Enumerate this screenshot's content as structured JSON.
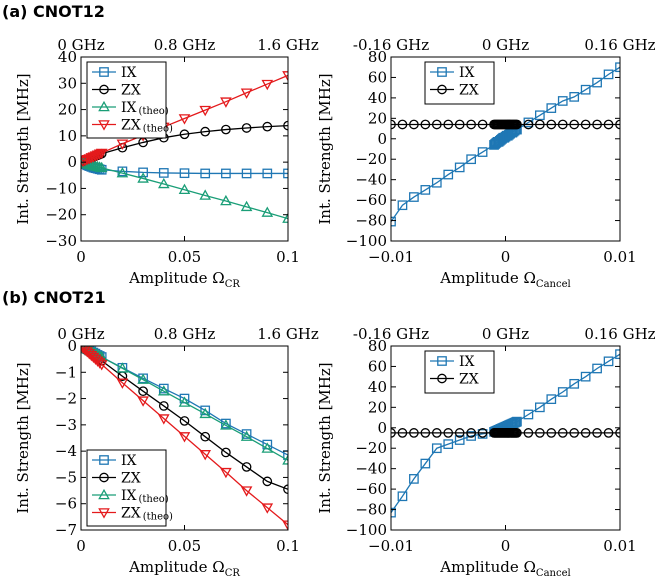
{
  "panels": [
    {
      "tag": "(a)",
      "name": "CNOT12"
    },
    {
      "tag": "(b)",
      "name": "CNOT21"
    }
  ],
  "colors": {
    "IX": "#1f77b4",
    "ZX": "#000000",
    "IX_theo": "#1a9e77",
    "ZX_theo": "#e41a1c"
  },
  "chart_data": [
    {
      "type": "line",
      "panel": "(a) CNOT12",
      "xlabel": "Amplitude Ω",
      "xlabel_sub": "CR",
      "ylabel": "Int. Strength [MHz]",
      "xlim": [
        0,
        0.1
      ],
      "ylim": [
        -30,
        40
      ],
      "xticks": [
        0,
        0.05,
        0.1
      ],
      "xtick_labels": [
        "0",
        "0.05",
        "0.1"
      ],
      "yticks": [
        -30,
        -20,
        -10,
        0,
        10,
        20,
        30,
        40
      ],
      "ytick_labels": [
        "−30",
        "−20",
        "−10",
        "0",
        "10",
        "20",
        "30",
        "40"
      ],
      "top_ticks": [
        0,
        0.05,
        0.1
      ],
      "top_tick_labels": [
        "0 GHz",
        "0.8 GHz",
        "1.6 GHz"
      ],
      "legend_position": "top-left",
      "series": [
        {
          "name": "IX",
          "marker": "square",
          "color": "#1f77b4",
          "x": [
            0.001,
            0.002,
            0.003,
            0.004,
            0.005,
            0.006,
            0.007,
            0.008,
            0.009,
            0.01,
            0.02,
            0.03,
            0.04,
            0.05,
            0.06,
            0.07,
            0.08,
            0.09,
            0.1
          ],
          "y": [
            -0.4,
            -0.8,
            -1.2,
            -1.5,
            -1.8,
            -2.1,
            -2.3,
            -2.5,
            -2.7,
            -2.9,
            -3.5,
            -3.9,
            -4.1,
            -4.2,
            -4.3,
            -4.3,
            -4.3,
            -4.3,
            -4.3
          ]
        },
        {
          "name": "ZX",
          "marker": "circle",
          "color": "#000000",
          "x": [
            0.001,
            0.002,
            0.003,
            0.004,
            0.005,
            0.006,
            0.007,
            0.008,
            0.009,
            0.01,
            0.02,
            0.03,
            0.04,
            0.05,
            0.06,
            0.07,
            0.08,
            0.09,
            0.1
          ],
          "y": [
            0.3,
            0.6,
            1.0,
            1.3,
            1.6,
            2.0,
            2.3,
            2.6,
            2.9,
            3.2,
            5.5,
            7.5,
            9.3,
            10.6,
            11.6,
            12.4,
            13.0,
            13.5,
            13.9
          ]
        },
        {
          "name": "IX",
          "name_sub": "(theo)",
          "marker": "triangle-up",
          "color": "#1a9e77",
          "x": [
            0.001,
            0.002,
            0.003,
            0.004,
            0.005,
            0.006,
            0.007,
            0.008,
            0.009,
            0.01,
            0.02,
            0.03,
            0.04,
            0.05,
            0.06,
            0.07,
            0.08,
            0.09,
            0.1
          ],
          "y": [
            -0.3,
            -0.5,
            -0.8,
            -1.0,
            -1.2,
            -1.4,
            -1.6,
            -1.8,
            -2.0,
            -2.2,
            -4.2,
            -6.2,
            -8.3,
            -10.5,
            -12.7,
            -14.8,
            -17.0,
            -19.2,
            -21.5
          ]
        },
        {
          "name": "ZX",
          "name_sub": "(theo)",
          "marker": "triangle-down",
          "color": "#e41a1c",
          "x": [
            0.001,
            0.002,
            0.003,
            0.004,
            0.005,
            0.006,
            0.007,
            0.008,
            0.009,
            0.01,
            0.02,
            0.03,
            0.04,
            0.05,
            0.06,
            0.07,
            0.08,
            0.09,
            0.1
          ],
          "y": [
            0.4,
            0.7,
            1.1,
            1.4,
            1.8,
            2.1,
            2.5,
            2.8,
            3.2,
            3.5,
            7.0,
            10.2,
            13.4,
            16.6,
            19.8,
            23.0,
            26.4,
            29.7,
            33.0
          ]
        }
      ]
    },
    {
      "type": "line",
      "panel": "(a) CNOT12",
      "xlabel": "Amplitude Ω",
      "xlabel_sub": "Cancel",
      "ylabel": "Int. Strength [MHz]",
      "xlim": [
        -0.01,
        0.01
      ],
      "ylim": [
        -100,
        80
      ],
      "xticks": [
        -0.01,
        0,
        0.01
      ],
      "xtick_labels": [
        "−0.01",
        "0",
        "0.01"
      ],
      "yticks": [
        -100,
        -80,
        -60,
        -40,
        -20,
        0,
        20,
        40,
        60,
        80
      ],
      "ytick_labels": [
        "−100",
        "−80",
        "−60",
        "−40",
        "−20",
        "0",
        "20",
        "40",
        "60",
        "80"
      ],
      "top_ticks": [
        -0.01,
        0,
        0.01
      ],
      "top_tick_labels": [
        "-0.16 GHz",
        "0 GHz",
        "0.16 GHz"
      ],
      "legend_position": "top-left",
      "series": [
        {
          "name": "IX",
          "marker": "square",
          "color": "#1f77b4",
          "x": [
            -0.01,
            -0.009,
            -0.008,
            -0.007,
            -0.006,
            -0.005,
            -0.004,
            -0.003,
            -0.002,
            -0.001,
            -0.0009,
            -0.0008,
            -0.0007,
            -0.0006,
            -0.0005,
            -0.0004,
            -0.0003,
            -0.0002,
            -0.0001,
            0,
            0.0001,
            0.0002,
            0.0003,
            0.0004,
            0.0005,
            0.0006,
            0.0007,
            0.0008,
            0.0009,
            0.001,
            0.002,
            0.003,
            0.004,
            0.005,
            0.006,
            0.007,
            0.008,
            0.009,
            0.01
          ],
          "y": [
            -81,
            -65,
            -57,
            -50,
            -43,
            -35,
            -28,
            -20,
            -13,
            -6,
            -5,
            -4,
            -3,
            -3,
            -2,
            -1,
            0,
            1,
            1,
            2,
            3,
            3,
            4,
            5,
            6,
            6,
            7,
            8,
            9,
            9,
            16,
            23,
            30,
            37,
            41,
            48,
            55,
            63,
            70
          ]
        },
        {
          "name": "ZX",
          "marker": "circle",
          "color": "#000000",
          "x": [
            -0.01,
            -0.009,
            -0.008,
            -0.007,
            -0.006,
            -0.005,
            -0.004,
            -0.003,
            -0.002,
            -0.001,
            -0.0009,
            -0.0008,
            -0.0007,
            -0.0006,
            -0.0005,
            -0.0004,
            -0.0003,
            -0.0002,
            -0.0001,
            0,
            0.0001,
            0.0002,
            0.0003,
            0.0004,
            0.0005,
            0.0006,
            0.0007,
            0.0008,
            0.0009,
            0.001,
            0.002,
            0.003,
            0.004,
            0.005,
            0.006,
            0.007,
            0.008,
            0.009,
            0.01
          ],
          "y": [
            14,
            14,
            14,
            14,
            14,
            14,
            14,
            14,
            14,
            14,
            14,
            14,
            14,
            14,
            14,
            14,
            14,
            14,
            14,
            14,
            14,
            14,
            14,
            14,
            14,
            14,
            14,
            14,
            14,
            14,
            14,
            14,
            14,
            14,
            14,
            14,
            14,
            14,
            14
          ]
        }
      ]
    },
    {
      "type": "line",
      "panel": "(b) CNOT21",
      "xlabel": "Amplitude Ω",
      "xlabel_sub": "CR",
      "ylabel": "Int. Strength [MHz]",
      "xlim": [
        0,
        0.1
      ],
      "ylim": [
        -7,
        0
      ],
      "xticks": [
        0,
        0.05,
        0.1
      ],
      "xtick_labels": [
        "0",
        "0.05",
        "0.1"
      ],
      "yticks": [
        -7,
        -6,
        -5,
        -4,
        -3,
        -2,
        -1,
        0
      ],
      "ytick_labels": [
        "−7",
        "−6",
        "−5",
        "−4",
        "−3",
        "−2",
        "−1",
        "0"
      ],
      "top_ticks": [
        0,
        0.05,
        0.1
      ],
      "top_tick_labels": [
        "0 GHz",
        "0.8 GHz",
        "1.6 GHz"
      ],
      "legend_position": "bottom-left",
      "series": [
        {
          "name": "IX",
          "marker": "square",
          "color": "#1f77b4",
          "x": [
            0.001,
            0.002,
            0.003,
            0.004,
            0.005,
            0.006,
            0.007,
            0.008,
            0.009,
            0.01,
            0.02,
            0.03,
            0.04,
            0.05,
            0.06,
            0.07,
            0.08,
            0.09,
            0.1
          ],
          "y": [
            -0.04,
            -0.08,
            -0.12,
            -0.17,
            -0.21,
            -0.25,
            -0.29,
            -0.34,
            -0.38,
            -0.42,
            -0.83,
            -1.23,
            -1.62,
            -2.0,
            -2.45,
            -2.95,
            -3.35,
            -3.75,
            -4.15
          ]
        },
        {
          "name": "ZX",
          "marker": "circle",
          "color": "#000000",
          "x": [
            0.001,
            0.002,
            0.003,
            0.004,
            0.005,
            0.006,
            0.007,
            0.008,
            0.009,
            0.01,
            0.02,
            0.03,
            0.04,
            0.05,
            0.06,
            0.07,
            0.08,
            0.09,
            0.1
          ],
          "y": [
            -0.06,
            -0.11,
            -0.17,
            -0.22,
            -0.28,
            -0.34,
            -0.39,
            -0.45,
            -0.5,
            -0.56,
            -1.15,
            -1.72,
            -2.28,
            -2.85,
            -3.45,
            -4.05,
            -4.6,
            -5.15,
            -5.45
          ]
        },
        {
          "name": "IX",
          "name_sub": "(theo)",
          "marker": "triangle-up",
          "color": "#1a9e77",
          "x": [
            0.001,
            0.002,
            0.003,
            0.004,
            0.005,
            0.006,
            0.007,
            0.008,
            0.009,
            0.01,
            0.02,
            0.03,
            0.04,
            0.05,
            0.06,
            0.07,
            0.08,
            0.09,
            0.1
          ],
          "y": [
            -0.04,
            -0.08,
            -0.12,
            -0.17,
            -0.21,
            -0.25,
            -0.29,
            -0.34,
            -0.38,
            -0.42,
            -0.85,
            -1.28,
            -1.72,
            -2.15,
            -2.58,
            -3.02,
            -3.45,
            -3.9,
            -4.35
          ]
        },
        {
          "name": "ZX",
          "name_sub": "(theo)",
          "marker": "triangle-down",
          "color": "#e41a1c",
          "x": [
            0.001,
            0.002,
            0.003,
            0.004,
            0.005,
            0.006,
            0.007,
            0.008,
            0.009,
            0.01,
            0.02,
            0.03,
            0.04,
            0.05,
            0.06,
            0.07,
            0.08,
            0.09,
            0.1
          ],
          "y": [
            -0.07,
            -0.14,
            -0.21,
            -0.28,
            -0.35,
            -0.42,
            -0.49,
            -0.56,
            -0.63,
            -0.7,
            -1.4,
            -2.08,
            -2.76,
            -3.44,
            -4.12,
            -4.8,
            -5.5,
            -6.15,
            -6.8
          ]
        }
      ]
    },
    {
      "type": "line",
      "panel": "(b) CNOT21",
      "xlabel": "Amplitude Ω",
      "xlabel_sub": "Cancel",
      "ylabel": "Int. Strength [MHz]",
      "xlim": [
        -0.01,
        0.01
      ],
      "ylim": [
        -100,
        80
      ],
      "xticks": [
        -0.01,
        0,
        0.01
      ],
      "xtick_labels": [
        "−0.01",
        "0",
        "0.01"
      ],
      "yticks": [
        -100,
        -80,
        -60,
        -40,
        -20,
        0,
        20,
        40,
        60,
        80
      ],
      "ytick_labels": [
        "−100",
        "−80",
        "−60",
        "−40",
        "−20",
        "0",
        "20",
        "40",
        "60",
        "80"
      ],
      "top_ticks": [
        -0.01,
        0,
        0.01
      ],
      "top_tick_labels": [
        "-0.16 GHz",
        "0 GHz",
        "0.16 GHz"
      ],
      "legend_position": "top-left",
      "series": [
        {
          "name": "IX",
          "marker": "square",
          "color": "#1f77b4",
          "x": [
            -0.01,
            -0.009,
            -0.008,
            -0.007,
            -0.006,
            -0.005,
            -0.004,
            -0.003,
            -0.002,
            -0.001,
            -0.0009,
            -0.0008,
            -0.0007,
            -0.0006,
            -0.0005,
            -0.0004,
            -0.0003,
            -0.0002,
            -0.0001,
            0,
            0.0001,
            0.0002,
            0.0003,
            0.0004,
            0.0005,
            0.0006,
            0.0007,
            0.0008,
            0.0009,
            0.001,
            0.002,
            0.003,
            0.004,
            0.005,
            0.006,
            0.007,
            0.008,
            0.009,
            0.01
          ],
          "y": [
            -83,
            -67,
            -50,
            -35,
            -20,
            -16,
            -12,
            -8,
            -6,
            -4,
            -3.5,
            -3,
            -2.5,
            -2,
            -1.5,
            -1,
            -0.5,
            0,
            0.5,
            1,
            1.5,
            2,
            2.5,
            3,
            3.5,
            4,
            4.5,
            5,
            5.5,
            6,
            13,
            20,
            28,
            35,
            43,
            50,
            58,
            65,
            72
          ]
        },
        {
          "name": "ZX",
          "marker": "circle",
          "color": "#000000",
          "x": [
            -0.01,
            -0.009,
            -0.008,
            -0.007,
            -0.006,
            -0.005,
            -0.004,
            -0.003,
            -0.002,
            -0.001,
            -0.0009,
            -0.0008,
            -0.0007,
            -0.0006,
            -0.0005,
            -0.0004,
            -0.0003,
            -0.0002,
            -0.0001,
            0,
            0.0001,
            0.0002,
            0.0003,
            0.0004,
            0.0005,
            0.0006,
            0.0007,
            0.0008,
            0.0009,
            0.001,
            0.002,
            0.003,
            0.004,
            0.005,
            0.006,
            0.007,
            0.008,
            0.009,
            0.01
          ],
          "y": [
            -5,
            -5,
            -5,
            -5,
            -5,
            -5,
            -5,
            -5,
            -5,
            -5,
            -5,
            -5,
            -5,
            -5,
            -5,
            -5,
            -5,
            -5,
            -5,
            -5,
            -5,
            -5,
            -5,
            -5,
            -5,
            -5,
            -5,
            -5,
            -5,
            -5,
            -5,
            -5,
            -5,
            -5,
            -5,
            -5,
            -5,
            -5,
            -5
          ]
        }
      ]
    }
  ]
}
